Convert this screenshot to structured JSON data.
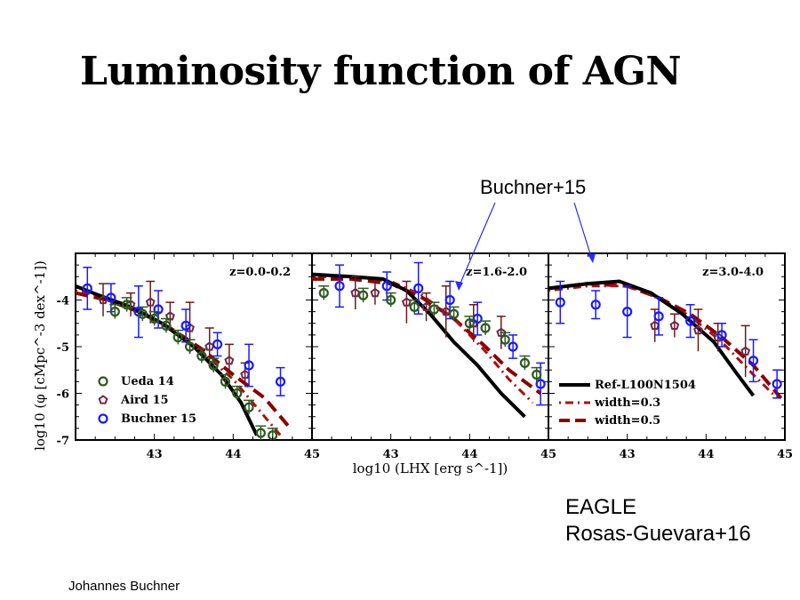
{
  "slide": {
    "title": "Luminosity function of AGN",
    "callout": "Buchner+15",
    "eagle_line1": "EAGLE",
    "eagle_line2": "Rosas-Guevara+16",
    "author": "Johannes Buchner"
  },
  "colors": {
    "ueda": "#2d5a1f",
    "aird": "#6b2a4a",
    "buchner": "#1a1aff",
    "errbar": "#6b1a1a",
    "model": "#000000",
    "width03": "#aa1010",
    "width05": "#8b0000",
    "arrow": "#2a2aff"
  },
  "chart_data": {
    "type": "scatter",
    "xlabel": "log10 (LHX [erg s^-1])",
    "ylabel": "log10 (φ [cMpc^-3 dex^-1])",
    "xlim": [
      42.0,
      45.0
    ],
    "ylim": [
      -7.0,
      -3.0
    ],
    "xticks": [
      "43",
      "44",
      "45"
    ],
    "yticks": [
      "-4",
      "-5",
      "-6",
      "-7"
    ],
    "legend_left": [
      "Ueda 14",
      "Aird 15",
      "Buchner 15"
    ],
    "legend_right": [
      "Ref-L100N1504",
      "width=0.3",
      "width=0.5"
    ],
    "panels": [
      {
        "label": "z=0.0-0.2",
        "ueda": [
          [
            42.5,
            -4.25
          ],
          [
            42.65,
            -4.1
          ],
          [
            42.85,
            -4.3
          ],
          [
            43.0,
            -4.4
          ],
          [
            43.15,
            -4.55
          ],
          [
            43.3,
            -4.8
          ],
          [
            43.45,
            -5.0
          ],
          [
            43.6,
            -5.2
          ],
          [
            43.75,
            -5.4
          ],
          [
            43.9,
            -5.75
          ],
          [
            44.05,
            -6.0
          ],
          [
            44.2,
            -6.3
          ],
          [
            44.35,
            -6.85
          ],
          [
            44.5,
            -6.9
          ]
        ],
        "aird": [
          [
            42.35,
            -4.0
          ],
          [
            42.7,
            -4.1
          ],
          [
            42.95,
            -4.05
          ],
          [
            43.2,
            -4.35
          ],
          [
            43.45,
            -4.6
          ],
          [
            43.7,
            -5.0
          ],
          [
            43.95,
            -5.3
          ],
          [
            44.15,
            -5.6
          ]
        ],
        "buchner": [
          [
            42.15,
            -3.75
          ],
          [
            42.45,
            -3.95
          ],
          [
            42.8,
            -4.25
          ],
          [
            43.05,
            -4.2
          ],
          [
            43.4,
            -4.55
          ],
          [
            43.8,
            -4.95
          ],
          [
            44.2,
            -5.4
          ],
          [
            44.6,
            -5.75
          ]
        ],
        "ref": [
          [
            42.0,
            -3.7
          ],
          [
            42.3,
            -3.9
          ],
          [
            42.7,
            -4.15
          ],
          [
            43.1,
            -4.5
          ],
          [
            43.5,
            -5.0
          ],
          [
            43.85,
            -5.6
          ],
          [
            44.1,
            -6.2
          ],
          [
            44.3,
            -6.9
          ]
        ],
        "w03": [
          [
            42.0,
            -3.8
          ],
          [
            42.4,
            -3.95
          ],
          [
            42.8,
            -4.2
          ],
          [
            43.2,
            -4.6
          ],
          [
            43.6,
            -5.1
          ],
          [
            44.0,
            -5.7
          ],
          [
            44.3,
            -6.3
          ],
          [
            44.6,
            -6.9
          ]
        ],
        "w05": [
          [
            42.0,
            -3.85
          ],
          [
            42.4,
            -4.0
          ],
          [
            42.8,
            -4.25
          ],
          [
            43.2,
            -4.6
          ],
          [
            43.6,
            -5.05
          ],
          [
            44.0,
            -5.6
          ],
          [
            44.4,
            -6.1
          ],
          [
            44.7,
            -6.7
          ]
        ]
      },
      {
        "label": "z=1.6-2.0",
        "ueda": [
          [
            42.15,
            -3.85
          ],
          [
            42.65,
            -3.9
          ],
          [
            43.0,
            -4.0
          ],
          [
            43.3,
            -4.15
          ],
          [
            43.55,
            -4.2
          ],
          [
            43.8,
            -4.3
          ],
          [
            44.0,
            -4.5
          ],
          [
            44.2,
            -4.6
          ],
          [
            44.45,
            -4.85
          ],
          [
            44.7,
            -5.35
          ],
          [
            44.85,
            -5.6
          ]
        ],
        "aird": [
          [
            42.55,
            -3.85
          ],
          [
            42.8,
            -3.85
          ],
          [
            43.2,
            -4.05
          ],
          [
            43.45,
            -4.15
          ],
          [
            43.7,
            -4.25
          ],
          [
            44.05,
            -4.5
          ],
          [
            44.4,
            -4.7
          ]
        ],
        "buchner": [
          [
            42.35,
            -3.7
          ],
          [
            42.95,
            -3.7
          ],
          [
            43.35,
            -3.75
          ],
          [
            43.75,
            -4.0
          ],
          [
            44.1,
            -4.4
          ],
          [
            44.55,
            -5.0
          ],
          [
            44.9,
            -5.8
          ]
        ],
        "ref": [
          [
            42.0,
            -3.45
          ],
          [
            42.5,
            -3.5
          ],
          [
            42.9,
            -3.55
          ],
          [
            43.2,
            -3.8
          ],
          [
            43.5,
            -4.3
          ],
          [
            43.8,
            -4.9
          ],
          [
            44.1,
            -5.4
          ],
          [
            44.4,
            -6.0
          ],
          [
            44.7,
            -6.5
          ]
        ],
        "w03": [
          [
            42.0,
            -3.5
          ],
          [
            42.5,
            -3.5
          ],
          [
            43.0,
            -3.6
          ],
          [
            43.4,
            -3.9
          ],
          [
            43.8,
            -4.4
          ],
          [
            44.2,
            -5.1
          ],
          [
            44.5,
            -5.7
          ],
          [
            44.8,
            -6.2
          ]
        ],
        "w05": [
          [
            42.0,
            -3.55
          ],
          [
            42.5,
            -3.55
          ],
          [
            43.0,
            -3.65
          ],
          [
            43.4,
            -3.95
          ],
          [
            43.8,
            -4.4
          ],
          [
            44.2,
            -5.0
          ],
          [
            44.5,
            -5.5
          ],
          [
            44.9,
            -6.0
          ]
        ]
      },
      {
        "label": "z=3.0-4.0",
        "ueda": [],
        "aird": [
          [
            43.35,
            -4.55
          ],
          [
            43.6,
            -4.55
          ],
          [
            43.9,
            -4.65
          ],
          [
            44.15,
            -4.8
          ],
          [
            44.5,
            -5.1
          ]
        ],
        "buchner": [
          [
            42.15,
            -4.05
          ],
          [
            42.6,
            -4.1
          ],
          [
            43.0,
            -4.25
          ],
          [
            43.4,
            -4.35
          ],
          [
            43.8,
            -4.45
          ],
          [
            44.2,
            -4.75
          ],
          [
            44.6,
            -5.3
          ],
          [
            44.9,
            -5.8
          ]
        ],
        "ref": [
          [
            42.0,
            -3.75
          ],
          [
            42.5,
            -3.65
          ],
          [
            42.9,
            -3.6
          ],
          [
            43.3,
            -3.85
          ],
          [
            43.7,
            -4.3
          ],
          [
            44.1,
            -4.9
          ],
          [
            44.4,
            -5.6
          ],
          [
            44.6,
            -6.05
          ]
        ],
        "w03": [
          [
            42.0,
            -3.8
          ],
          [
            42.5,
            -3.7
          ],
          [
            43.0,
            -3.7
          ],
          [
            43.4,
            -3.95
          ],
          [
            43.8,
            -4.35
          ],
          [
            44.2,
            -4.9
          ],
          [
            44.6,
            -5.6
          ],
          [
            44.9,
            -6.1
          ]
        ],
        "w05": [
          [
            42.0,
            -3.75
          ],
          [
            42.5,
            -3.65
          ],
          [
            43.0,
            -3.7
          ],
          [
            43.4,
            -3.95
          ],
          [
            43.8,
            -4.3
          ],
          [
            44.2,
            -4.8
          ],
          [
            44.6,
            -5.4
          ],
          [
            44.95,
            -6.1
          ]
        ]
      }
    ]
  }
}
